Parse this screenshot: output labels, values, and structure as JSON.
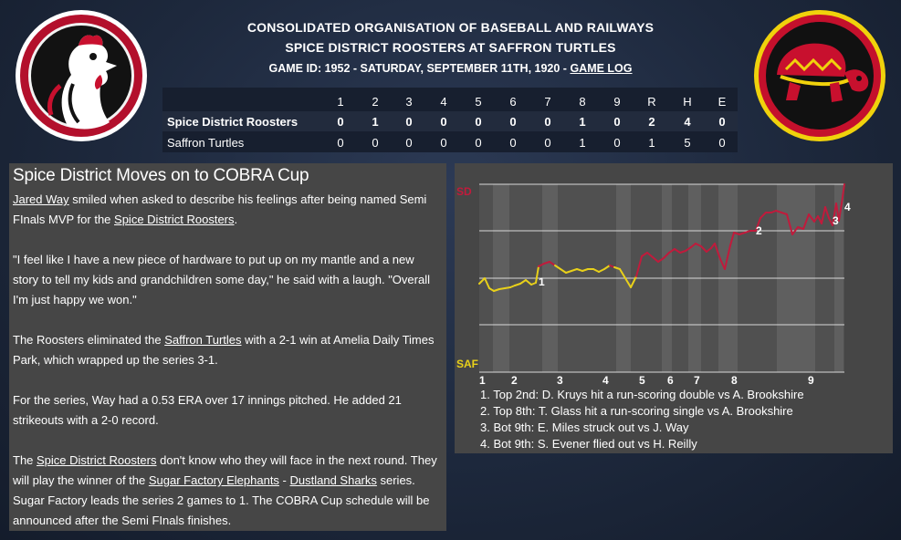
{
  "header": {
    "league": "CONSOLIDATED ORGANISATION OF BASEBALL AND RAILWAYS",
    "matchup": "SPICE DISTRICT ROOSTERS AT SAFFRON TURTLES",
    "game_info": "GAME ID: 1952 - SATURDAY, SEPTEMBER 11TH, 1920 - ",
    "game_log_link": "GAME LOG"
  },
  "logos": {
    "left_icon": "rooster-logo",
    "right_icon": "turtle-logo"
  },
  "linescore": {
    "columns": [
      "1",
      "2",
      "3",
      "4",
      "5",
      "6",
      "7",
      "8",
      "9",
      "R",
      "H",
      "E"
    ],
    "teams": [
      {
        "name": "Spice District Roosters",
        "scores": [
          "0",
          "1",
          "0",
          "0",
          "0",
          "0",
          "0",
          "1",
          "0",
          "2",
          "4",
          "0"
        ]
      },
      {
        "name": "Saffron Turtles",
        "scores": [
          "0",
          "0",
          "0",
          "0",
          "0",
          "0",
          "0",
          "1",
          "0",
          "1",
          "5",
          "0"
        ]
      }
    ]
  },
  "article": {
    "title": "Spice District Moves on to COBRA Cup",
    "p1": {
      "link1": "Jared Way",
      "t1": " smiled when asked to describe his feelings after being named Semi FInals MVP for the ",
      "link2": "Spice District Roosters",
      "t2": "."
    },
    "p2": "\"I feel like I have a new piece of hardware to put up on my mantle and a new story to tell my kids and grandchildren some day,\" he said with a laugh. \"Overall I'm just happy we won.\"",
    "p3": {
      "t1": "The Roosters eliminated the ",
      "link1": "Saffron Turtles",
      "t2": " with a 2-1 win at Amelia Daily Times Park, which wrapped up the series 3-1."
    },
    "p4": "For the series, Way had a 0.53 ERA over 17 innings pitched. He added 21 strikeouts with a 2-0 record.",
    "p5": {
      "t1": "The ",
      "link1": "Spice District Roosters",
      "t2": " don't know who they will face in the next round. They will play the winner of the ",
      "link2": "Sugar Factory Elephants",
      "t3": " - ",
      "link3": "Dustland Sharks",
      "t4": " series. Sugar Factory leads the series 2 games to 1. The COBRA Cup schedule will be announced after the Semi FInals finishes."
    }
  },
  "win_probability": {
    "top_label": "SD",
    "bottom_label": "SAF",
    "innings": [
      "1",
      "2",
      "3",
      "4",
      "5",
      "6",
      "7",
      "8",
      "9"
    ],
    "event_markers": [
      "1",
      "2",
      "3",
      "4"
    ],
    "events": [
      "1. Top 2nd: D. Kruys hit a run-scoring double vs A. Brookshire",
      "2. Top 8th: T. Glass hit a run-scoring single vs A. Brookshire",
      "3. Bot 9th: E. Miles struck out vs J. Way",
      "4. Bot 9th: S. Evener flied out vs H. Reilly"
    ],
    "colors": {
      "sd": "#c01b3c",
      "saf": "#e8d01a"
    }
  }
}
